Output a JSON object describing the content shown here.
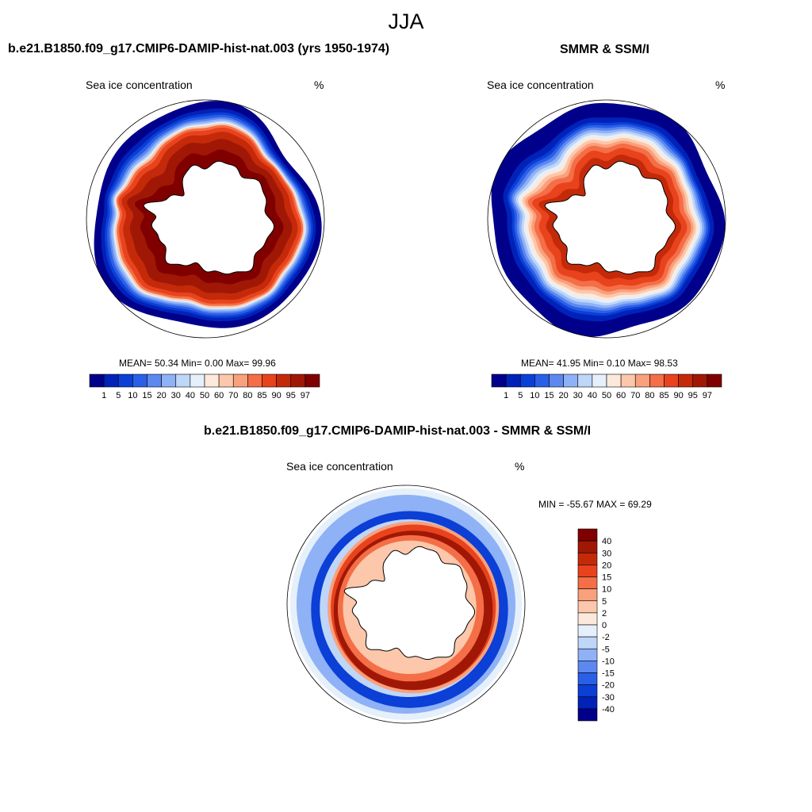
{
  "figure": {
    "title": "JJA"
  },
  "panels": [
    {
      "title": "b.e21.B1850.f09_g17.CMIP6-DAMIP-hist-nat.003 (yrs 1950-1974)",
      "left_label": "Sea ice concentration",
      "right_label": "%",
      "stats": "MEAN=  50.34  Min=   0.00  Max=  99.96"
    },
    {
      "title": "SMMR & SSM/I",
      "left_label": "Sea ice concentration",
      "right_label": "%",
      "stats": "MEAN=  41.95  Min=   0.10  Max=  98.53"
    },
    {
      "title": "b.e21.B1850.f09_g17.CMIP6-DAMIP-hist-nat.003 - SMMR & SSM/I",
      "left_label": "Sea ice concentration",
      "right_label": "%",
      "stats": "MIN = -55.67 MAX =  69.29"
    }
  ],
  "chart_data": [
    {
      "type": "heatmap",
      "projection": "south polar stereographic",
      "title": "b.e21.B1850.f09_g17.CMIP6-DAMIP-hist-nat.003 (yrs 1950-1974)",
      "variable": "Sea ice concentration",
      "units": "%",
      "mean": 50.34,
      "min": 0.0,
      "max": 99.96,
      "colorbar_levels": [
        1,
        5,
        10,
        15,
        20,
        30,
        40,
        50,
        60,
        70,
        80,
        85,
        90,
        95,
        97
      ],
      "colorbar_colors": [
        "#00008b",
        "#0022b8",
        "#0b3fd6",
        "#2a5fe8",
        "#5c88ef",
        "#8fb1f6",
        "#bed6f8",
        "#e6f0fb",
        "#fde9dc",
        "#fcc7aa",
        "#f9a07c",
        "#f46e47",
        "#e8431d",
        "#c42a0a",
        "#a01805",
        "#800000"
      ],
      "ice_edge_radius_frac": {
        "Weddell": 0.86,
        "Ross": 0.83,
        "EastAntarctic": 0.87,
        "Amundsen": 0.82
      }
    },
    {
      "type": "heatmap",
      "projection": "south polar stereographic",
      "title": "SMMR & SSM/I",
      "variable": "Sea ice concentration",
      "units": "%",
      "mean": 41.95,
      "min": 0.1,
      "max": 98.53,
      "colorbar_levels": [
        1,
        5,
        10,
        15,
        20,
        30,
        40,
        50,
        60,
        70,
        80,
        85,
        90,
        95,
        97
      ],
      "colorbar_colors": [
        "#00008b",
        "#0022b8",
        "#0b3fd6",
        "#2a5fe8",
        "#5c88ef",
        "#8fb1f6",
        "#bed6f8",
        "#e6f0fb",
        "#fde9dc",
        "#fcc7aa",
        "#f9a07c",
        "#f46e47",
        "#e8431d",
        "#c42a0a",
        "#a01805",
        "#800000"
      ]
    },
    {
      "type": "heatmap",
      "projection": "south polar stereographic",
      "title": "b.e21.B1850.f09_g17.CMIP6-DAMIP-hist-nat.003 - SMMR & SSM/I",
      "variable": "Sea ice concentration",
      "units": "%",
      "min": -55.67,
      "max": 69.29,
      "colorbar_levels": [
        40,
        30,
        20,
        15,
        10,
        5,
        2,
        0,
        -2,
        -5,
        -10,
        -15,
        -20,
        -30,
        -40
      ],
      "colorbar_colors": [
        "#800000",
        "#a01805",
        "#c42a0a",
        "#e8431d",
        "#f46e47",
        "#f9a07c",
        "#fcc7aa",
        "#fde9dc",
        "#e6f0fb",
        "#bed6f8",
        "#8fb1f6",
        "#5c88ef",
        "#2a5fe8",
        "#0b3fd6",
        "#0022b8",
        "#00008b"
      ]
    }
  ]
}
